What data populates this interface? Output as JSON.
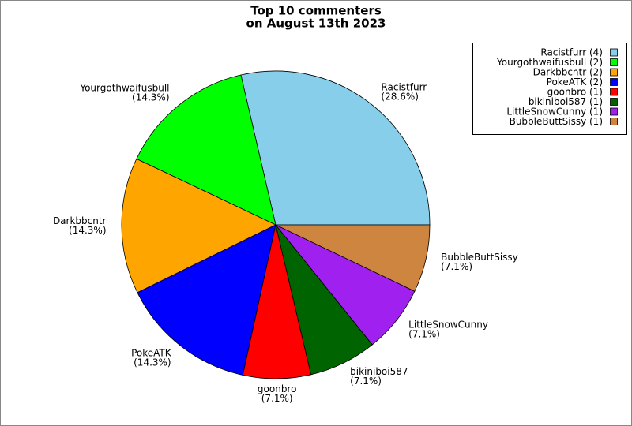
{
  "chart_data": {
    "type": "pie",
    "title": [
      "Top 10 commenters",
      "on August 13th 2023"
    ],
    "categories": [
      "Racistfurr",
      "Yourgothwaifusbull",
      "Darkbbcntr",
      "PokeATK",
      "goonbro",
      "bikiniboi587",
      "LittleSnowCunny",
      "BubbleButtSissy"
    ],
    "values": [
      28.6,
      14.3,
      14.3,
      14.3,
      7.1,
      7.1,
      7.1,
      7.1
    ],
    "value_labels": [
      "(28.6%)",
      "(14.3%)",
      "(14.3%)",
      "(14.3%)",
      "(7.1%)",
      "(7.1%)",
      "(7.1%)",
      "(7.1%)"
    ],
    "legend_labels": [
      "Racistfurr (4)",
      "Yourgothwaifusbull (2)",
      "Darkbbcntr (2)",
      "PokeATK (2)",
      "goonbro (1)",
      "bikiniboi587 (1)",
      "LittleSnowCunny (1)",
      "BubbleButtSissy (1)"
    ],
    "colors": [
      "#87ceeb",
      "#00ff00",
      "#ffa500",
      "#0000ff",
      "#ff0000",
      "#006400",
      "#a020f0",
      "#cd853f"
    ],
    "legend": "upper right"
  }
}
